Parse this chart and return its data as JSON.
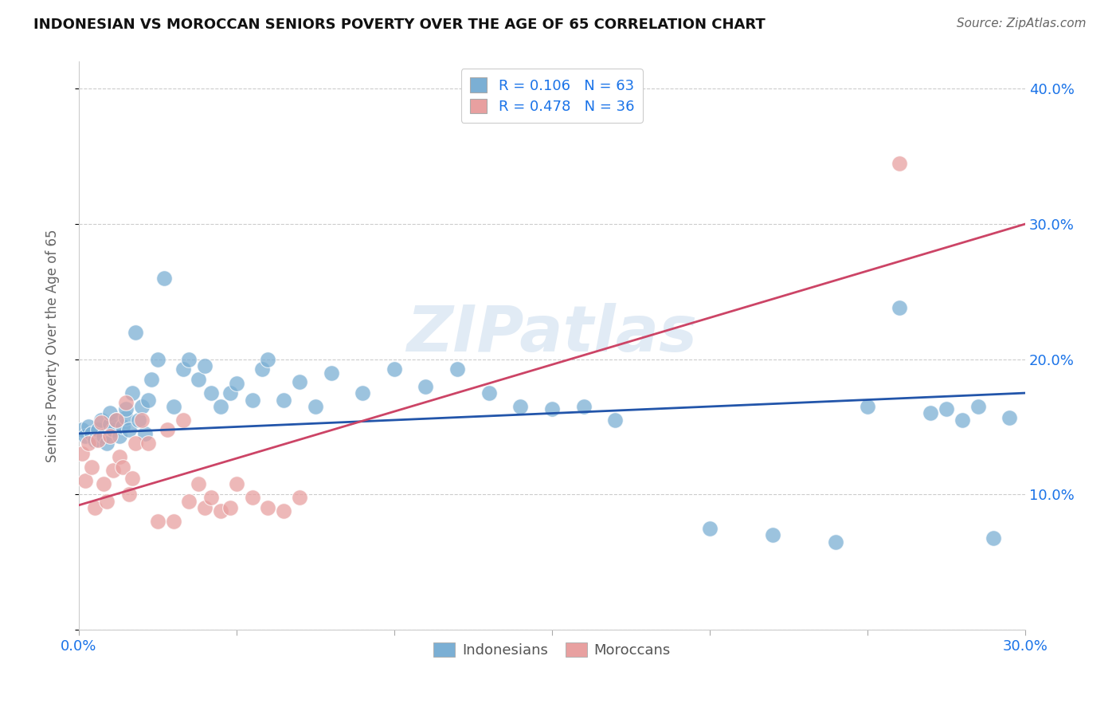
{
  "title": "INDONESIAN VS MOROCCAN SENIORS POVERTY OVER THE AGE OF 65 CORRELATION CHART",
  "source": "Source: ZipAtlas.com",
  "ylabel": "Seniors Poverty Over the Age of 65",
  "xlim": [
    0.0,
    0.3
  ],
  "ylim": [
    0.0,
    0.42
  ],
  "x_ticks": [
    0.0,
    0.05,
    0.1,
    0.15,
    0.2,
    0.25,
    0.3
  ],
  "y_ticks": [
    0.0,
    0.1,
    0.2,
    0.3,
    0.4
  ],
  "R_indonesian": 0.106,
  "N_indonesian": 63,
  "R_moroccan": 0.478,
  "N_moroccan": 36,
  "indonesian_color": "#7bafd4",
  "moroccan_color": "#e8a0a0",
  "indonesian_line_color": "#2255aa",
  "moroccan_line_color": "#cc4466",
  "legend_label_indonesian": "Indonesians",
  "legend_label_moroccan": "Moroccans",
  "watermark": "ZIPatlas",
  "legend_text_color": "#1a73e8",
  "indonesian_x": [
    0.001,
    0.002,
    0.003,
    0.004,
    0.005,
    0.006,
    0.007,
    0.008,
    0.009,
    0.01,
    0.01,
    0.011,
    0.012,
    0.013,
    0.014,
    0.015,
    0.015,
    0.016,
    0.017,
    0.018,
    0.019,
    0.02,
    0.021,
    0.022,
    0.023,
    0.025,
    0.027,
    0.03,
    0.033,
    0.035,
    0.038,
    0.04,
    0.042,
    0.045,
    0.048,
    0.05,
    0.055,
    0.058,
    0.06,
    0.065,
    0.07,
    0.075,
    0.08,
    0.09,
    0.1,
    0.11,
    0.12,
    0.13,
    0.14,
    0.15,
    0.16,
    0.17,
    0.2,
    0.22,
    0.24,
    0.25,
    0.26,
    0.27,
    0.275,
    0.28,
    0.285,
    0.29,
    0.295
  ],
  "indonesian_y": [
    0.148,
    0.143,
    0.15,
    0.145,
    0.14,
    0.148,
    0.155,
    0.143,
    0.138,
    0.152,
    0.16,
    0.148,
    0.155,
    0.143,
    0.15,
    0.157,
    0.163,
    0.148,
    0.175,
    0.22,
    0.155,
    0.165,
    0.145,
    0.17,
    0.185,
    0.2,
    0.26,
    0.165,
    0.193,
    0.2,
    0.185,
    0.195,
    0.175,
    0.165,
    0.175,
    0.182,
    0.17,
    0.193,
    0.2,
    0.17,
    0.183,
    0.165,
    0.19,
    0.175,
    0.193,
    0.18,
    0.193,
    0.175,
    0.165,
    0.163,
    0.165,
    0.155,
    0.075,
    0.07,
    0.065,
    0.165,
    0.238,
    0.16,
    0.163,
    0.155,
    0.165,
    0.068,
    0.157
  ],
  "moroccan_x": [
    0.001,
    0.002,
    0.003,
    0.004,
    0.005,
    0.006,
    0.007,
    0.008,
    0.009,
    0.01,
    0.011,
    0.012,
    0.013,
    0.014,
    0.015,
    0.016,
    0.017,
    0.018,
    0.02,
    0.022,
    0.025,
    0.028,
    0.03,
    0.033,
    0.035,
    0.038,
    0.04,
    0.042,
    0.045,
    0.048,
    0.05,
    0.055,
    0.06,
    0.065,
    0.07,
    0.26
  ],
  "moroccan_y": [
    0.13,
    0.11,
    0.138,
    0.12,
    0.09,
    0.14,
    0.153,
    0.108,
    0.095,
    0.143,
    0.118,
    0.155,
    0.128,
    0.12,
    0.168,
    0.1,
    0.112,
    0.138,
    0.155,
    0.138,
    0.08,
    0.148,
    0.08,
    0.155,
    0.095,
    0.108,
    0.09,
    0.098,
    0.088,
    0.09,
    0.108,
    0.098,
    0.09,
    0.088,
    0.098,
    0.345
  ]
}
